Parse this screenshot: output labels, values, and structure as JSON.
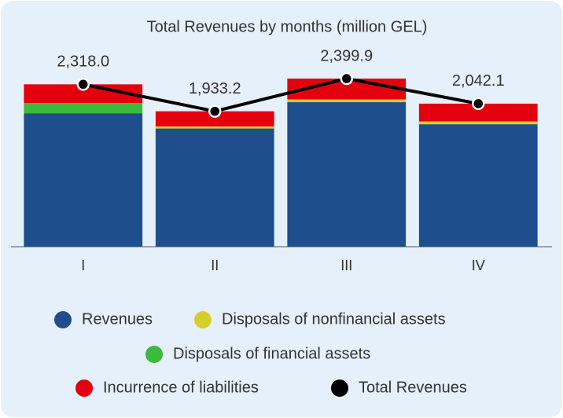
{
  "chart_data": {
    "type": "bar",
    "title": "Total Revenues by months (million GEL)",
    "categories": [
      "I",
      "II",
      "III",
      "IV"
    ],
    "stacked": true,
    "series": [
      {
        "name": "Revenues",
        "color": "#1f4e8c",
        "values": [
          1905,
          1687,
          2063,
          1748
        ]
      },
      {
        "name": "Disposals of nonfinancial assets",
        "color": "#d6cf2b",
        "values": [
          0,
          30,
          40,
          40
        ]
      },
      {
        "name": "Disposals of financial assets",
        "color": "#3cba3c",
        "values": [
          146,
          0,
          0,
          0
        ]
      },
      {
        "name": "Incurrence of liabilities",
        "color": "#e3000f",
        "values": [
          267,
          216,
          297,
          254
        ]
      },
      {
        "name": "Total Revenues",
        "color": "#000000",
        "type": "line",
        "values": [
          2318.0,
          1933.2,
          2399.9,
          2042.1
        ],
        "value_labels": [
          "2,318.0",
          "1,933.2",
          "2,399.9",
          "2,042.1"
        ]
      }
    ]
  }
}
